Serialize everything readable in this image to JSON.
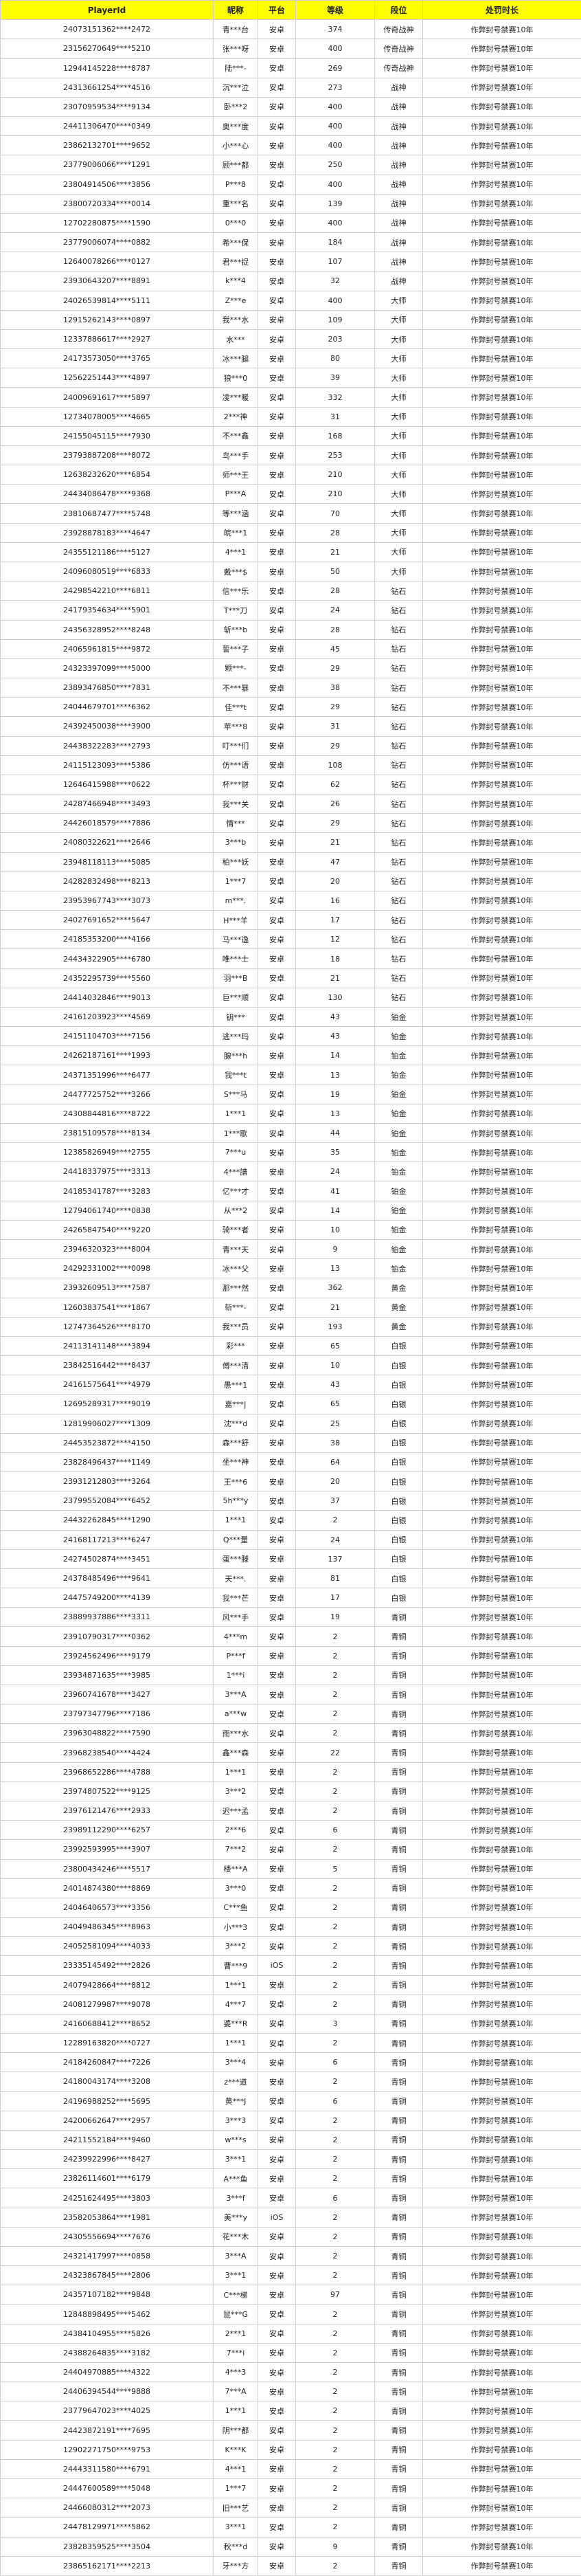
{
  "table": {
    "columns": [
      "PlayerId",
      "昵称",
      "平台",
      "等级",
      "段位",
      "处罚时长"
    ],
    "rows": [
      [
        "24073151362****2472",
        "青***台",
        "安卓",
        374,
        "传奇战神",
        "作弊封号禁赛10年"
      ],
      [
        "23156270649****5210",
        "张***呀",
        "安卓",
        400,
        "传奇战神",
        "作弊封号禁赛10年"
      ],
      [
        "12944145228****8787",
        "陆***-",
        "安卓",
        269,
        "传奇战神",
        "作弊封号禁赛10年"
      ],
      [
        "24313661254****4516",
        "沉***泣",
        "安卓",
        273,
        "战神",
        "作弊封号禁赛10年"
      ],
      [
        "23070959534****9134",
        "卧***2",
        "安卓",
        400,
        "战神",
        "作弊封号禁赛10年"
      ],
      [
        "24411306470****0349",
        "奥***度",
        "安卓",
        400,
        "战神",
        "作弊封号禁赛10年"
      ],
      [
        "23862132701****9652",
        "小***心",
        "安卓",
        400,
        "战神",
        "作弊封号禁赛10年"
      ],
      [
        "23779006066****1291",
        "顾***都",
        "安卓",
        250,
        "战神",
        "作弊封号禁赛10年"
      ],
      [
        "23804914506****3856",
        "P***8",
        "安卓",
        400,
        "战神",
        "作弊封号禁赛10年"
      ],
      [
        "23800720334****0014",
        "重***名",
        "安卓",
        139,
        "战神",
        "作弊封号禁赛10年"
      ],
      [
        "12702280875****1590",
        "0***0",
        "安卓",
        400,
        "战神",
        "作弊封号禁赛10年"
      ],
      [
        "23779006074****0882",
        "希***保",
        "安卓",
        184,
        "战神",
        "作弊封号禁赛10年"
      ],
      [
        "12640078266****0127",
        "君***捉",
        "安卓",
        107,
        "战神",
        "作弊封号禁赛10年"
      ],
      [
        "23930643207****8891",
        "k***4",
        "安卓",
        32,
        "战神",
        "作弊封号禁赛10年"
      ],
      [
        "24026539814****5111",
        "Z***e",
        "安卓",
        400,
        "大师",
        "作弊封号禁赛10年"
      ],
      [
        "12915262143****0897",
        "我***水",
        "安卓",
        109,
        "大师",
        "作弊封号禁赛10年"
      ],
      [
        "12337886617****2927",
        "水***",
        "安卓",
        203,
        "大师",
        "作弊封号禁赛10年"
      ],
      [
        "24173573050****3765",
        "冰***腿",
        "安卓",
        80,
        "大师",
        "作弊封号禁赛10年"
      ],
      [
        "12562251443****4897",
        "狼***0",
        "安卓",
        39,
        "大师",
        "作弊封号禁赛10年"
      ],
      [
        "24009691617****5897",
        "凌***暖",
        "安卓",
        332,
        "大师",
        "作弊封号禁赛10年"
      ],
      [
        "12734078005****4665",
        "2***神",
        "安卓",
        31,
        "大师",
        "作弊封号禁赛10年"
      ],
      [
        "24155045115****7930",
        "不***鑫",
        "安卓",
        168,
        "大师",
        "作弊封号禁赛10年"
      ],
      [
        "23793887208****8072",
        "鸟***手",
        "安卓",
        253,
        "大师",
        "作弊封号禁赛10年"
      ],
      [
        "12638232620****6854",
        "师***王",
        "安卓",
        210,
        "大师",
        "作弊封号禁赛10年"
      ],
      [
        "24434086478****9368",
        "P***A",
        "安卓",
        210,
        "大师",
        "作弊封号禁赛10年"
      ],
      [
        "23810687477****5748",
        "等***涵",
        "安卓",
        70,
        "大师",
        "作弊封号禁赛10年"
      ],
      [
        "23928878183****4647",
        "皖***1",
        "安卓",
        28,
        "大师",
        "作弊封号禁赛10年"
      ],
      [
        "24355121186****5127",
        "4***1",
        "安卓",
        21,
        "大师",
        "作弊封号禁赛10年"
      ],
      [
        "24096080519****6833",
        "戴***$",
        "安卓",
        50,
        "大师",
        "作弊封号禁赛10年"
      ],
      [
        "24298542210****6811",
        "信***乐",
        "安卓",
        28,
        "钻石",
        "作弊封号禁赛10年"
      ],
      [
        "24179354634****5901",
        "T***刀",
        "安卓",
        24,
        "钻石",
        "作弊封号禁赛10年"
      ],
      [
        "24356328952****8248",
        "斩***b",
        "安卓",
        28,
        "钻石",
        "作弊封号禁赛10年"
      ],
      [
        "24065961815****9872",
        "誓***子",
        "安卓",
        45,
        "钻石",
        "作弊封号禁赛10年"
      ],
      [
        "24323397099****5000",
        "颗***-",
        "安卓",
        29,
        "钻石",
        "作弊封号禁赛10年"
      ],
      [
        "23893476850****7831",
        "不***暴",
        "安卓",
        38,
        "钻石",
        "作弊封号禁赛10年"
      ],
      [
        "24044679701****6362",
        "佳***t",
        "安卓",
        29,
        "钻石",
        "作弊封号禁赛10年"
      ],
      [
        "24392450038****3900",
        "苹***8",
        "安卓",
        31,
        "钻石",
        "作弊封号禁赛10年"
      ],
      [
        "24438322283****2793",
        "叮***们",
        "安卓",
        29,
        "钻石",
        "作弊封号禁赛10年"
      ],
      [
        "24115123093****5386",
        "仿***语",
        "安卓",
        108,
        "钻石",
        "作弊封号禁赛10年"
      ],
      [
        "12646415988****0622",
        "杯***财",
        "安卓",
        62,
        "钻石",
        "作弊封号禁赛10年"
      ],
      [
        "24287466948****3493",
        "我***关",
        "安卓",
        26,
        "钻石",
        "作弊封号禁赛10年"
      ],
      [
        "24426018579****7886",
        "情***",
        "安卓",
        29,
        "钻石",
        "作弊封号禁赛10年"
      ],
      [
        "24080322621****2646",
        "3***b",
        "安卓",
        21,
        "钻石",
        "作弊封号禁赛10年"
      ],
      [
        "23948118113****5085",
        "柏***妖",
        "安卓",
        47,
        "钻石",
        "作弊封号禁赛10年"
      ],
      [
        "24282832498****8213",
        "1***7",
        "安卓",
        20,
        "钻石",
        "作弊封号禁赛10年"
      ],
      [
        "23953967743****3073",
        "m***.",
        "安卓",
        16,
        "钻石",
        "作弊封号禁赛10年"
      ],
      [
        "24027691652****5647",
        "H***羊",
        "安卓",
        17,
        "钻石",
        "作弊封号禁赛10年"
      ],
      [
        "24185353200****4166",
        "马***逸",
        "安卓",
        12,
        "钻石",
        "作弊封号禁赛10年"
      ],
      [
        "24434322905****6780",
        "唯***士",
        "安卓",
        18,
        "钻石",
        "作弊封号禁赛10年"
      ],
      [
        "24352295739****5560",
        "羽***B",
        "安卓",
        21,
        "钻石",
        "作弊封号禁赛10年"
      ],
      [
        "24414032846****9013",
        "巨***顺",
        "安卓",
        130,
        "钻石",
        "作弊封号禁赛10年"
      ],
      [
        "24161203923****4569",
        "钥***",
        "安卓",
        43,
        "铂金",
        "作弊封号禁赛10年"
      ],
      [
        "24151104703****7156",
        "逃***玛",
        "安卓",
        43,
        "铂金",
        "作弊封号禁赛10年"
      ],
      [
        "24262187161****1993",
        "腺***h",
        "安卓",
        14,
        "铂金",
        "作弊封号禁赛10年"
      ],
      [
        "24371351996****6477",
        "我***t",
        "安卓",
        13,
        "铂金",
        "作弊封号禁赛10年"
      ],
      [
        "24477725752****3266",
        "S***马",
        "安卓",
        19,
        "铂金",
        "作弊封号禁赛10年"
      ],
      [
        "24308844816****8722",
        "1***1",
        "安卓",
        13,
        "铂金",
        "作弊封号禁赛10年"
      ],
      [
        "23815109578****8134",
        "1***歌",
        "安卓",
        44,
        "铂金",
        "作弊封号禁赛10年"
      ],
      [
        "12385826949****2755",
        "7***u",
        "安卓",
        35,
        "铂金",
        "作弊封号禁赛10年"
      ],
      [
        "24418337975****3313",
        "4***譜",
        "安卓",
        24,
        "铂金",
        "作弊封号禁赛10年"
      ],
      [
        "24185341787****3283",
        "亿***才",
        "安卓",
        41,
        "铂金",
        "作弊封号禁赛10年"
      ],
      [
        "12794061740****0838",
        "从***2",
        "安卓",
        14,
        "铂金",
        "作弊封号禁赛10年"
      ],
      [
        "24265847540****9220",
        "骑***者",
        "安卓",
        10,
        "铂金",
        "作弊封号禁赛10年"
      ],
      [
        "23946320323****8004",
        "青***天",
        "安卓",
        9,
        "铂金",
        "作弊封号禁赛10年"
      ],
      [
        "24292331002****0098",
        "冰***父",
        "安卓",
        13,
        "铂金",
        "作弊封号禁赛10年"
      ],
      [
        "23932609513****7587",
        "那***然",
        "安卓",
        362,
        "黄金",
        "作弊封号禁赛10年"
      ],
      [
        "12603837541****1867",
        "斩***-",
        "安卓",
        21,
        "黄金",
        "作弊封号禁赛10年"
      ],
      [
        "12747364526****8170",
        "我***员",
        "安卓",
        193,
        "黄金",
        "作弊封号禁赛10年"
      ],
      [
        "24113141148****3894",
        "彩***",
        "安卓",
        65,
        "白银",
        "作弊封号禁赛10年"
      ],
      [
        "23842516442****8437",
        "傅***清",
        "安卓",
        10,
        "白银",
        "作弊封号禁赛10年"
      ],
      [
        "24161575641****4979",
        "愚***1",
        "安卓",
        43,
        "白银",
        "作弊封号禁赛10年"
      ],
      [
        "12695289317****9019",
        "嘉***|",
        "安卓",
        65,
        "白银",
        "作弊封号禁赛10年"
      ],
      [
        "12819906027****1309",
        "沈***d",
        "安卓",
        25,
        "白银",
        "作弊封号禁赛10年"
      ],
      [
        "24453523872****4150",
        "森***舒",
        "安卓",
        38,
        "白银",
        "作弊封号禁赛10年"
      ],
      [
        "23828496437****1149",
        "坐***神",
        "安卓",
        64,
        "白银",
        "作弊封号禁赛10年"
      ],
      [
        "23931212803****3264",
        "王***6",
        "安卓",
        20,
        "白银",
        "作弊封号禁赛10年"
      ],
      [
        "23799552084****6452",
        "5h***y",
        "安卓",
        37,
        "白银",
        "作弊封号禁赛10年"
      ],
      [
        "24432262845****1290",
        "1***1",
        "安卓",
        2,
        "白银",
        "作弊封号禁赛10年"
      ],
      [
        "24168117213****6247",
        "Q***量",
        "安卓",
        24,
        "白银",
        "作弊封号禁赛10年"
      ],
      [
        "24274502874****3451",
        "蛋***滕",
        "安卓",
        137,
        "白银",
        "作弊封号禁赛10年"
      ],
      [
        "24378485496****9641",
        "天***.",
        "安卓",
        81,
        "白银",
        "作弊封号禁赛10年"
      ],
      [
        "24475749200****4139",
        "我***芒",
        "安卓",
        17,
        "白银",
        "作弊封号禁赛10年"
      ],
      [
        "23889937886****3311",
        "风***手",
        "安卓",
        19,
        "青铜",
        "作弊封号禁赛10年"
      ],
      [
        "23910790317****0362",
        "4***m",
        "安卓",
        2,
        "青铜",
        "作弊封号禁赛10年"
      ],
      [
        "23924562496****9179",
        "P***f",
        "安卓",
        2,
        "青铜",
        "作弊封号禁赛10年"
      ],
      [
        "23934871635****3985",
        "1***i",
        "安卓",
        2,
        "青铜",
        "作弊封号禁赛10年"
      ],
      [
        "23960741678****3427",
        "3***A",
        "安卓",
        2,
        "青铜",
        "作弊封号禁赛10年"
      ],
      [
        "23797347796****7186",
        "a***w",
        "安卓",
        2,
        "青铜",
        "作弊封号禁赛10年"
      ],
      [
        "23963048822****7590",
        "雨***水",
        "安卓",
        2,
        "青铜",
        "作弊封号禁赛10年"
      ],
      [
        "23968238540****4424",
        "鑫***森",
        "安卓",
        22,
        "青铜",
        "作弊封号禁赛10年"
      ],
      [
        "23968652286****4788",
        "1***1",
        "安卓",
        2,
        "青铜",
        "作弊封号禁赛10年"
      ],
      [
        "23974807522****9125",
        "3***2",
        "安卓",
        2,
        "青铜",
        "作弊封号禁赛10年"
      ],
      [
        "23976121476****2933",
        "迟***孟",
        "安卓",
        2,
        "青铜",
        "作弊封号禁赛10年"
      ],
      [
        "23989112290****6257",
        "2***6",
        "安卓",
        6,
        "青铜",
        "作弊封号禁赛10年"
      ],
      [
        "23992593995****3907",
        "7***2",
        "安卓",
        2,
        "青铜",
        "作弊封号禁赛10年"
      ],
      [
        "23800434246****5517",
        "楼***A",
        "安卓",
        5,
        "青铜",
        "作弊封号禁赛10年"
      ],
      [
        "24014874380****8869",
        "3***0",
        "安卓",
        2,
        "青铜",
        "作弊封号禁赛10年"
      ],
      [
        "24046406573****3356",
        "C***鱼",
        "安卓",
        2,
        "青铜",
        "作弊封号禁赛10年"
      ],
      [
        "24049486345****8963",
        "小***3",
        "安卓",
        2,
        "青铜",
        "作弊封号禁赛10年"
      ],
      [
        "24052581094****4033",
        "3***2",
        "安卓",
        2,
        "青铜",
        "作弊封号禁赛10年"
      ],
      [
        "23335145492****2826",
        "曹***9",
        "iOS",
        2,
        "青铜",
        "作弊封号禁赛10年"
      ],
      [
        "24079428664****8812",
        "1***1",
        "安卓",
        2,
        "青铜",
        "作弊封号禁赛10年"
      ],
      [
        "24081279987****9078",
        "4***7",
        "安卓",
        2,
        "青铜",
        "作弊封号禁赛10年"
      ],
      [
        "24160688412****8652",
        "婆***R",
        "安卓",
        3,
        "青铜",
        "作弊封号禁赛10年"
      ],
      [
        "12289163820****0727",
        "1***1",
        "安卓",
        2,
        "青铜",
        "作弊封号禁赛10年"
      ],
      [
        "24184260847****7226",
        "3***4",
        "安卓",
        6,
        "青铜",
        "作弊封号禁赛10年"
      ],
      [
        "24180043174****3208",
        "z***道",
        "安卓",
        2,
        "青铜",
        "作弊封号禁赛10年"
      ],
      [
        "24196988252****5695",
        "黄***J",
        "安卓",
        6,
        "青铜",
        "作弊封号禁赛10年"
      ],
      [
        "24200662647****2957",
        "3***3",
        "安卓",
        2,
        "青铜",
        "作弊封号禁赛10年"
      ],
      [
        "24211552184****9460",
        "w***s",
        "安卓",
        2,
        "青铜",
        "作弊封号禁赛10年"
      ],
      [
        "24239922996****8427",
        "3***1",
        "安卓",
        2,
        "青铜",
        "作弊封号禁赛10年"
      ],
      [
        "23826114601****6179",
        "A***鱼",
        "安卓",
        2,
        "青铜",
        "作弊封号禁赛10年"
      ],
      [
        "24251624495****3803",
        "3***f",
        "安卓",
        6,
        "青铜",
        "作弊封号禁赛10年"
      ],
      [
        "23582053864****1981",
        "美***y",
        "iOS",
        2,
        "青铜",
        "作弊封号禁赛10年"
      ],
      [
        "24305556694****7676",
        "花***木",
        "安卓",
        2,
        "青铜",
        "作弊封号禁赛10年"
      ],
      [
        "24321417997****0858",
        "3***A",
        "安卓",
        2,
        "青铜",
        "作弊封号禁赛10年"
      ],
      [
        "24323867845****2806",
        "3***1",
        "安卓",
        2,
        "青铜",
        "作弊封号禁赛10年"
      ],
      [
        "24357107182****9848",
        "C***梯",
        "安卓",
        97,
        "青铜",
        "作弊封号禁赛10年"
      ],
      [
        "12848898495****5462",
        "鼠***G",
        "安卓",
        2,
        "青铜",
        "作弊封号禁赛10年"
      ],
      [
        "24384104955****5826",
        "2***1",
        "安卓",
        2,
        "青铜",
        "作弊封号禁赛10年"
      ],
      [
        "24388264835****3182",
        "7***i",
        "安卓",
        2,
        "青铜",
        "作弊封号禁赛10年"
      ],
      [
        "24404970885****4322",
        "4***3",
        "安卓",
        2,
        "青铜",
        "作弊封号禁赛10年"
      ],
      [
        "24406394544****9888",
        "7***A",
        "安卓",
        2,
        "青铜",
        "作弊封号禁赛10年"
      ],
      [
        "23779647023****4025",
        "1***1",
        "安卓",
        2,
        "青铜",
        "作弊封号禁赛10年"
      ],
      [
        "24423872191****7695",
        "阴***都",
        "安卓",
        2,
        "青铜",
        "作弊封号禁赛10年"
      ],
      [
        "12902271750****9753",
        "K***K",
        "安卓",
        2,
        "青铜",
        "作弊封号禁赛10年"
      ],
      [
        "24443311580****6791",
        "4***1",
        "安卓",
        2,
        "青铜",
        "作弊封号禁赛10年"
      ],
      [
        "24447600589****5048",
        "1***7",
        "安卓",
        2,
        "青铜",
        "作弊封号禁赛10年"
      ],
      [
        "24466080312****2073",
        "旧***艺",
        "安卓",
        2,
        "青铜",
        "作弊封号禁赛10年"
      ],
      [
        "24478129971****5862",
        "3***1",
        "安卓",
        2,
        "青铜",
        "作弊封号禁赛10年"
      ],
      [
        "23828359525****3504",
        "秋***d",
        "安卓",
        9,
        "青铜",
        "作弊封号禁赛10年"
      ],
      [
        "23865162171****2213",
        "牙***方",
        "安卓",
        2,
        "青铜",
        "作弊封号禁赛10年"
      ]
    ]
  }
}
